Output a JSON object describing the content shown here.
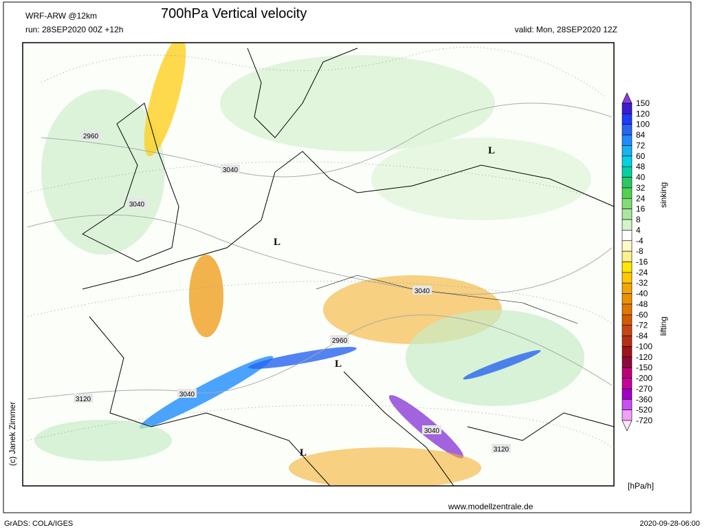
{
  "header": {
    "model": "WRF-ARW @12km",
    "title": "700hPa Vertical velocity",
    "run": "run: 28SEP2020 00Z +12h",
    "valid": "valid: Mon, 28SEP2020 12Z"
  },
  "map": {
    "contour_labels": [
      2960,
      3040,
      3040,
      3040,
      2960,
      3040,
      3120,
      3040,
      3120
    ],
    "pressure_centers": [
      "L",
      "L",
      "L",
      "L"
    ]
  },
  "colorbar": {
    "levels": [
      150,
      120,
      100,
      84,
      72,
      60,
      48,
      40,
      32,
      24,
      16,
      8,
      4,
      -4,
      -8,
      -16,
      -24,
      -32,
      -40,
      -48,
      -60,
      -72,
      -84,
      -100,
      -120,
      -150,
      -200,
      -270,
      -360,
      -520,
      -720
    ],
    "colors": [
      "#8c3cd8",
      "#3c1ed2",
      "#1e3cff",
      "#2864f0",
      "#1e8cff",
      "#14b4f0",
      "#00d2e6",
      "#00d2a0",
      "#28c864",
      "#50d250",
      "#82dc78",
      "#aae6a0",
      "#d2f5c8",
      "#ffffff",
      "#fffac8",
      "#fff08c",
      "#ffe600",
      "#ffc800",
      "#f5a500",
      "#eb9100",
      "#e17800",
      "#d25a00",
      "#c84614",
      "#b43214",
      "#a01414",
      "#8c0a3c",
      "#be0078",
      "#c8009b",
      "#a000c8",
      "#c850f0",
      "#f0a0f5",
      "#ffe6ff"
    ],
    "upper_label": "sinking",
    "lower_label": "lifting",
    "unit": "[hPa/h]"
  },
  "credit": "(c) Janek Zimmer",
  "website": "www.modellzentrale.de",
  "footer": {
    "left": "GrADS: COLA/IGES",
    "right": "2020-09-28-06:00"
  }
}
